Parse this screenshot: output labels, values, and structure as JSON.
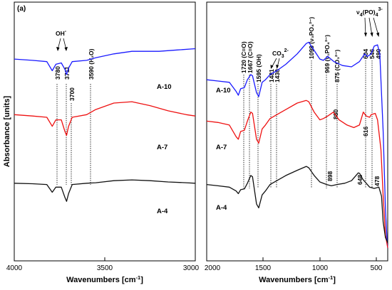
{
  "chart_data": {
    "type": "line",
    "panel_tag": "(a)",
    "ylabel": "Absorbance [units]",
    "xlabel_prefix": "Wavenumbers [cm",
    "xlabel_exp": "-1",
    "xlabel_suffix": "]",
    "panels": [
      {
        "id": "left",
        "xlim": [
          4000,
          3000
        ],
        "xticks": [
          4000,
          3500,
          3000
        ],
        "tick_labels": [
          "4000",
          "3500",
          "3000"
        ],
        "series": [
          {
            "name": "A-10",
            "color": "#1a1aff",
            "points": [
              [
                4000,
                0.78
              ],
              [
                3900,
                0.775
              ],
              [
                3820,
                0.77
              ],
              [
                3790,
                0.735
              ],
              [
                3770,
                0.76
              ],
              [
                3740,
                0.765
              ],
              [
                3720,
                0.74
              ],
              [
                3711,
                0.72
              ],
              [
                3700,
                0.745
              ],
              [
                3680,
                0.77
              ],
              [
                3600,
                0.775
              ],
              [
                3550,
                0.785
              ],
              [
                3450,
                0.8
              ],
              [
                3350,
                0.81
              ],
              [
                3200,
                0.81
              ],
              [
                3100,
                0.815
              ],
              [
                3000,
                0.82
              ]
            ]
          },
          {
            "name": "A-7",
            "color": "#ee1111",
            "points": [
              [
                4000,
                0.565
              ],
              [
                3900,
                0.56
              ],
              [
                3820,
                0.555
              ],
              [
                3790,
                0.52
              ],
              [
                3770,
                0.545
              ],
              [
                3740,
                0.545
              ],
              [
                3720,
                0.5
              ],
              [
                3711,
                0.485
              ],
              [
                3700,
                0.52
              ],
              [
                3680,
                0.555
              ],
              [
                3600,
                0.565
              ],
              [
                3550,
                0.585
              ],
              [
                3450,
                0.61
              ],
              [
                3350,
                0.615
              ],
              [
                3250,
                0.6
              ],
              [
                3150,
                0.58
              ],
              [
                3050,
                0.565
              ],
              [
                3000,
                0.56
              ]
            ]
          },
          {
            "name": "A-4",
            "color": "#111111",
            "points": [
              [
                4000,
                0.3
              ],
              [
                3900,
                0.298
              ],
              [
                3820,
                0.295
              ],
              [
                3790,
                0.265
              ],
              [
                3770,
                0.285
              ],
              [
                3740,
                0.285
              ],
              [
                3720,
                0.245
              ],
              [
                3711,
                0.23
              ],
              [
                3700,
                0.26
              ],
              [
                3680,
                0.295
              ],
              [
                3600,
                0.3
              ],
              [
                3550,
                0.302
              ],
              [
                3450,
                0.31
              ],
              [
                3350,
                0.313
              ],
              [
                3250,
                0.31
              ],
              [
                3150,
                0.305
              ],
              [
                3050,
                0.302
              ],
              [
                3000,
                0.3
              ]
            ]
          }
        ],
        "annotations": {
          "oh_label": "OH",
          "oh_sup": "-",
          "labels": [
            {
              "text": "3780",
              "x": 3780
            },
            {
              "text": "3711",
              "x": 3711
            },
            {
              "text": "3700",
              "x": 3700
            },
            {
              "text": "3590 (H₂O)",
              "x": 3590
            }
          ]
        }
      },
      {
        "id": "right",
        "xlim": [
          2000,
          400
        ],
        "xticks": [
          2000,
          1500,
          1000,
          500
        ],
        "tick_labels": [
          "2000",
          "1500",
          "1000",
          "500"
        ],
        "series": [
          {
            "name": "A-10",
            "color": "#1a1aff",
            "points": [
              [
                2000,
                0.7
              ],
              [
                1900,
                0.695
              ],
              [
                1800,
                0.69
              ],
              [
                1740,
                0.655
              ],
              [
                1720,
                0.64
              ],
              [
                1700,
                0.665
              ],
              [
                1667,
                0.67
              ],
              [
                1640,
                0.7
              ],
              [
                1610,
                0.72
              ],
              [
                1595,
                0.715
              ],
              [
                1560,
                0.65
              ],
              [
                1540,
                0.635
              ],
              [
                1510,
                0.69
              ],
              [
                1481,
                0.7
              ],
              [
                1440,
                0.72
              ],
              [
                1380,
                0.735
              ],
              [
                1300,
                0.76
              ],
              [
                1200,
                0.8
              ],
              [
                1120,
                0.84
              ],
              [
                1098,
                0.845
              ],
              [
                1060,
                0.82
              ],
              [
                1000,
                0.78
              ],
              [
                969,
                0.775
              ],
              [
                930,
                0.79
              ],
              [
                875,
                0.77
              ],
              [
                800,
                0.755
              ],
              [
                720,
                0.75
              ],
              [
                650,
                0.77
              ],
              [
                604,
                0.8
              ],
              [
                580,
                0.79
              ],
              [
                546,
                0.8
              ],
              [
                520,
                0.83
              ],
              [
                490,
                0.835
              ],
              [
                470,
                0.8
              ],
              [
                440,
                0.5
              ],
              [
                420,
                0.2
              ],
              [
                405,
                0.07
              ],
              [
                400,
                0.05
              ]
            ]
          },
          {
            "name": "A-7",
            "color": "#ee1111",
            "points": [
              [
                2000,
                0.54
              ],
              [
                1900,
                0.535
              ],
              [
                1800,
                0.525
              ],
              [
                1740,
                0.48
              ],
              [
                1720,
                0.47
              ],
              [
                1700,
                0.5
              ],
              [
                1667,
                0.505
              ],
              [
                1640,
                0.54
              ],
              [
                1610,
                0.575
              ],
              [
                1595,
                0.57
              ],
              [
                1560,
                0.47
              ],
              [
                1540,
                0.455
              ],
              [
                1510,
                0.51
              ],
              [
                1481,
                0.525
              ],
              [
                1440,
                0.55
              ],
              [
                1380,
                0.565
              ],
              [
                1300,
                0.585
              ],
              [
                1200,
                0.61
              ],
              [
                1120,
                0.62
              ],
              [
                1098,
                0.615
              ],
              [
                1050,
                0.575
              ],
              [
                1000,
                0.545
              ],
              [
                969,
                0.55
              ],
              [
                930,
                0.56
              ],
              [
                880,
                0.575
              ],
              [
                830,
                0.545
              ],
              [
                760,
                0.525
              ],
              [
                700,
                0.515
              ],
              [
                650,
                0.525
              ],
              [
                616,
                0.575
              ],
              [
                590,
                0.56
              ],
              [
                560,
                0.555
              ],
              [
                546,
                0.565
              ],
              [
                510,
                0.57
              ],
              [
                490,
                0.545
              ],
              [
                460,
                0.43
              ],
              [
                440,
                0.25
              ],
              [
                420,
                0.1
              ],
              [
                400,
                0.05
              ]
            ]
          },
          {
            "name": "A-4",
            "color": "#111111",
            "points": [
              [
                2000,
                0.295
              ],
              [
                1900,
                0.29
              ],
              [
                1800,
                0.285
              ],
              [
                1740,
                0.27
              ],
              [
                1720,
                0.26
              ],
              [
                1700,
                0.275
              ],
              [
                1667,
                0.278
              ],
              [
                1640,
                0.3
              ],
              [
                1610,
                0.33
              ],
              [
                1595,
                0.325
              ],
              [
                1560,
                0.22
              ],
              [
                1540,
                0.205
              ],
              [
                1510,
                0.255
              ],
              [
                1481,
                0.27
              ],
              [
                1440,
                0.295
              ],
              [
                1380,
                0.31
              ],
              [
                1300,
                0.33
              ],
              [
                1200,
                0.35
              ],
              [
                1120,
                0.365
              ],
              [
                1098,
                0.36
              ],
              [
                1050,
                0.33
              ],
              [
                1000,
                0.305
              ],
              [
                940,
                0.295
              ],
              [
                898,
                0.29
              ],
              [
                850,
                0.295
              ],
              [
                780,
                0.3
              ],
              [
                720,
                0.31
              ],
              [
                660,
                0.34
              ],
              [
                648,
                0.338
              ],
              [
                620,
                0.315
              ],
              [
                560,
                0.285
              ],
              [
                520,
                0.28
              ],
              [
                478,
                0.285
              ],
              [
                455,
                0.25
              ],
              [
                440,
                0.15
              ],
              [
                420,
                0.09
              ],
              [
                400,
                0.07
              ]
            ]
          }
        ],
        "annotations": {
          "co3_label": "CO",
          "co3_sub": "3",
          "co3_sup": "2-",
          "po4_label": "ν",
          "po4_sub": "4",
          "po4_mid": "(PO)",
          "po4_sub2": "4",
          "po4_sup": "3-",
          "labels": [
            {
              "text": "1720 (C=O)",
              "x": 1720
            },
            {
              "text": "1667 (C=O)",
              "x": 1667
            },
            {
              "text": "1595 (OH)",
              "x": 1595
            },
            {
              "text": "1481",
              "x": 1481
            },
            {
              "text": "1430",
              "x": 1430
            },
            {
              "text": "1098 (ν₃PO₄³⁻)",
              "x": 1098
            },
            {
              "text": "969 (ν₁PO₄³⁻)",
              "x": 969
            },
            {
              "text": "875 (CO₃²⁻)",
              "x": 875
            },
            {
              "text": "880",
              "x": 880
            },
            {
              "text": "898",
              "x": 898
            },
            {
              "text": "604",
              "x": 604
            },
            {
              "text": "616",
              "x": 616
            },
            {
              "text": "648",
              "x": 648
            },
            {
              "text": "546",
              "x": 546
            },
            {
              "text": "490",
              "x": 490
            },
            {
              "text": "478",
              "x": 478
            }
          ]
        }
      }
    ]
  }
}
